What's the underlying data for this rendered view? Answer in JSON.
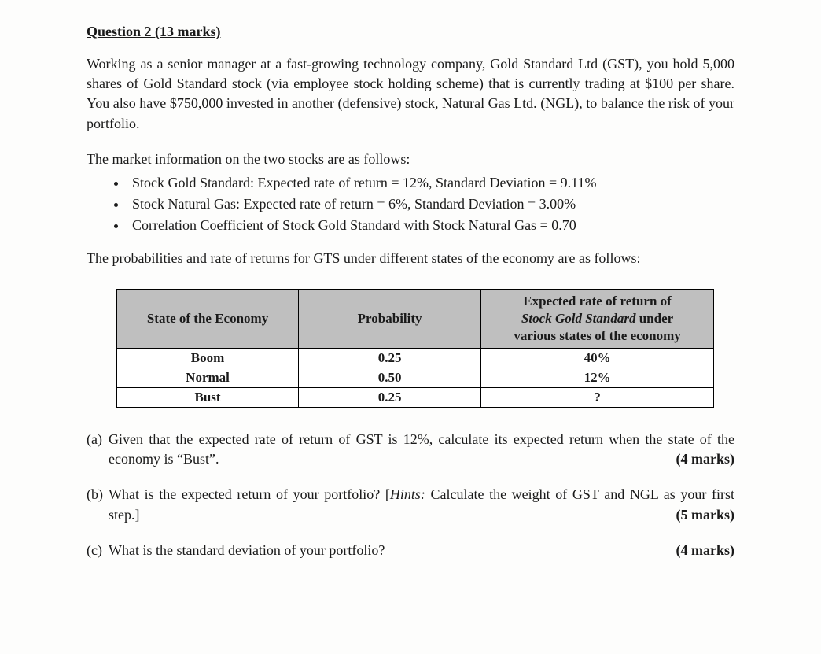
{
  "heading": "Question 2 (13 marks)",
  "para1": "Working as a senior manager at a fast-growing technology company, Gold Standard Ltd (GST), you hold 5,000 shares of Gold Standard stock (via employee stock holding scheme) that is currently trading at $100 per share. You also have $750,000 invested in another (defensive) stock, Natural Gas Ltd. (NGL), to balance the risk of your portfolio.",
  "marketIntro": "The market information on the two stocks are as follows:",
  "bullets": [
    "Stock Gold Standard: Expected rate of return = 12%, Standard Deviation = 9.11%",
    "Stock Natural Gas: Expected rate of return = 6%, Standard Deviation = 3.00%",
    "Correlation Coefficient of Stock Gold Standard with Stock Natural Gas = 0.70"
  ],
  "probIntro": "The probabilities and rate of returns for GTS under different states of the economy are as follows:",
  "table": {
    "headers": {
      "state": "State of the Economy",
      "prob": "Probability",
      "ret_line1": "Expected rate of return of",
      "ret_line2_prefix": "Stock Gold Standard",
      "ret_line2_suffix": " under",
      "ret_line3": "various states of the economy"
    },
    "rows": [
      {
        "state": "Boom",
        "prob": "0.25",
        "ret": "40%"
      },
      {
        "state": "Normal",
        "prob": "0.50",
        "ret": "12%"
      },
      {
        "state": "Bust",
        "prob": "0.25",
        "ret": "?"
      }
    ]
  },
  "subq": {
    "a": {
      "label": "(a)",
      "text": "Given that the expected rate of return of GST is 12%, calculate its expected return when the state of the economy is “Bust”.",
      "marks": "(4 marks)"
    },
    "b": {
      "label": "(b)",
      "text_pre": "What is the expected return of your portfolio? [",
      "hints_label": "Hints:",
      "text_post": " Calculate the weight of GST and NGL as your first step.]",
      "marks": "(5 marks)"
    },
    "c": {
      "label": "(c)",
      "text": "What is the standard deviation of your portfolio?",
      "marks": "(4 marks)"
    }
  }
}
